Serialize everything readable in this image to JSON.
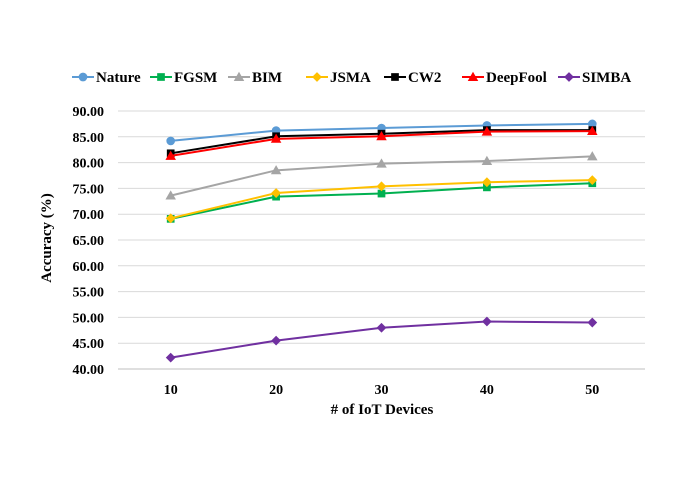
{
  "chart_data": {
    "type": "line",
    "title": "",
    "xlabel": "# of IoT Devices",
    "ylabel": "Accuracy (%)",
    "x": [
      10,
      20,
      30,
      40,
      50
    ],
    "x_tick_labels": [
      "10",
      "20",
      "30",
      "40",
      "50"
    ],
    "ylim": [
      40,
      90
    ],
    "y_ticks": [
      40,
      45,
      50,
      55,
      60,
      65,
      70,
      75,
      80,
      85,
      90
    ],
    "y_tick_labels": [
      "40.00",
      "45.00",
      "50.00",
      "55.00",
      "60.00",
      "65.00",
      "70.00",
      "75.00",
      "80.00",
      "85.00",
      "90.00"
    ],
    "grid": "horizontal",
    "legend_position": "top",
    "series": [
      {
        "name": "Nature",
        "color": "#5B9BD5",
        "marker": "circle",
        "values": [
          84.2,
          86.2,
          86.7,
          87.2,
          87.5
        ]
      },
      {
        "name": "FGSM",
        "color": "#00B050",
        "marker": "square",
        "values": [
          69.1,
          73.4,
          74.0,
          75.2,
          76.0
        ]
      },
      {
        "name": "BIM",
        "color": "#A5A5A5",
        "marker": "triangle",
        "values": [
          73.6,
          78.5,
          79.8,
          80.3,
          81.2
        ]
      },
      {
        "name": "JSMA",
        "color": "#FFC000",
        "marker": "diamond",
        "values": [
          69.2,
          74.1,
          75.4,
          76.2,
          76.6
        ]
      },
      {
        "name": "CW2",
        "color": "#000000",
        "marker": "square",
        "values": [
          81.8,
          85.1,
          85.6,
          86.3,
          86.3
        ]
      },
      {
        "name": "DeepFool",
        "color": "#FF0000",
        "marker": "triangle",
        "values": [
          81.3,
          84.6,
          85.1,
          86.0,
          86.1
        ]
      },
      {
        "name": "SIMBA",
        "color": "#7030A0",
        "marker": "diamond",
        "values": [
          42.2,
          45.5,
          48.0,
          49.2,
          49.0
        ]
      }
    ]
  }
}
